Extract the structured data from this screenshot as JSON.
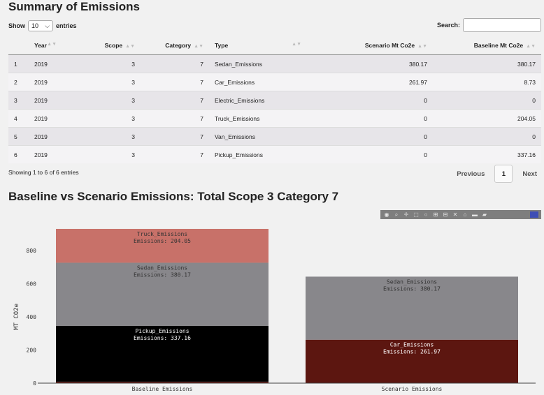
{
  "summary": {
    "title": "Summary of Emissions",
    "show_label": "Show",
    "entries_value": "10",
    "entries_label": "entries",
    "search_label": "Search:",
    "search_value": ""
  },
  "table": {
    "columns": [
      "",
      "Year",
      "Scope",
      "Category",
      "Type",
      "Scenario Mt Co2e",
      "Baseline Mt Co2e"
    ],
    "rows": [
      [
        "1",
        "2019",
        "3",
        "7",
        "Sedan_Emissions",
        "380.17",
        "380.17"
      ],
      [
        "2",
        "2019",
        "3",
        "7",
        "Car_Emissions",
        "261.97",
        "8.73"
      ],
      [
        "3",
        "2019",
        "3",
        "7",
        "Electric_Emissions",
        "0",
        "0"
      ],
      [
        "4",
        "2019",
        "3",
        "7",
        "Truck_Emissions",
        "0",
        "204.05"
      ],
      [
        "5",
        "2019",
        "3",
        "7",
        "Van_Emissions",
        "0",
        "0"
      ],
      [
        "6",
        "2019",
        "3",
        "7",
        "Pickup_Emissions",
        "0",
        "337.16"
      ]
    ],
    "info": "Showing 1 to 6 of 6 entries",
    "prev_label": "Previous",
    "page_label": "1",
    "next_label": "Next"
  },
  "chart_title": "Baseline vs Scenario Emissions: Total Scope 3 Category 7",
  "modebar_icons": [
    "camera-icon",
    "zoom-icon",
    "pan-icon",
    "box-select-icon",
    "lasso-icon",
    "zoom-in-icon",
    "zoom-out-icon",
    "autoscale-icon",
    "home-icon",
    "spike-icon",
    "hover-closest-icon",
    "hover-compare-icon",
    "plotly-logo-icon"
  ],
  "chart_data": {
    "type": "bar",
    "stacked": true,
    "categories": [
      "Baseline Emissions",
      "Scenario Emissions"
    ],
    "ylabel": "MT CO2e",
    "ylim": [
      0,
      930
    ],
    "yticks": [
      "0",
      "200",
      "400",
      "600",
      "800"
    ],
    "grid": false,
    "series": [
      {
        "name": "Car_Emissions",
        "values": [
          8.73,
          261.97
        ],
        "color": "#5c1610"
      },
      {
        "name": "Pickup_Emissions",
        "values": [
          337.16,
          0
        ],
        "color": "#000000"
      },
      {
        "name": "Sedan_Emissions",
        "values": [
          380.17,
          380.17
        ],
        "color": "#88878b"
      },
      {
        "name": "Truck_Emissions",
        "values": [
          204.05,
          0
        ],
        "color": "#c87169"
      }
    ],
    "bar_labels": [
      {
        "category": 0,
        "series": "Truck_Emissions",
        "name": "Truck_Emissions",
        "text": "Emissions:  204.05"
      },
      {
        "category": 0,
        "series": "Sedan_Emissions",
        "name": "Sedan_Emissions",
        "text": "Emissions:  380.17"
      },
      {
        "category": 0,
        "series": "Pickup_Emissions",
        "name": "Pickup_Emissions",
        "text": "Emissions:  337.16"
      },
      {
        "category": 1,
        "series": "Sedan_Emissions",
        "name": "Sedan_Emissions",
        "text": "Emissions:  380.17"
      },
      {
        "category": 1,
        "series": "Car_Emissions",
        "name": "Car_Emissions",
        "text": "Emissions:  261.97"
      }
    ]
  }
}
